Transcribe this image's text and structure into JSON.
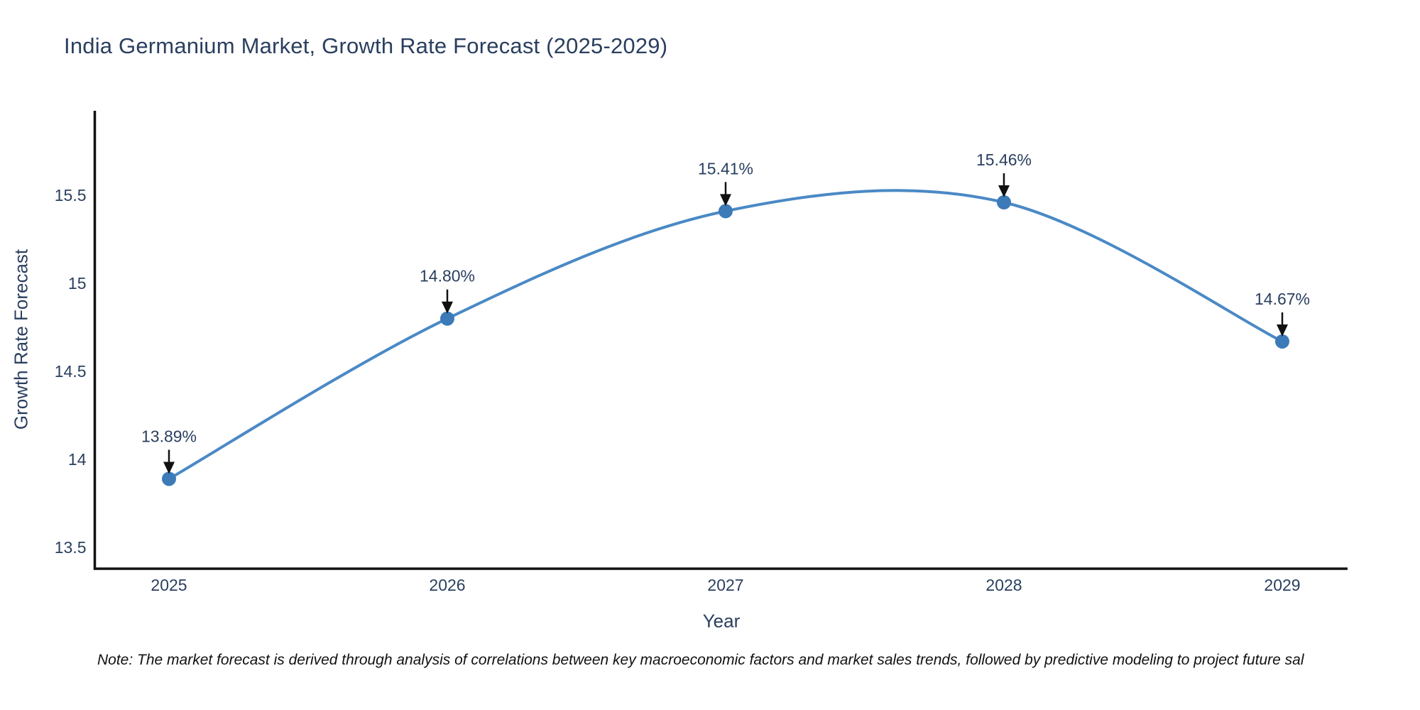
{
  "chart_data": {
    "type": "line",
    "title": "India Germanium Market, Growth Rate Forecast (2025-2029)",
    "xlabel": "Year",
    "ylabel": "Growth Rate Forecast",
    "categories": [
      "2025",
      "2026",
      "2027",
      "2028",
      "2029"
    ],
    "values": [
      13.89,
      14.8,
      15.41,
      15.46,
      14.67
    ],
    "point_labels": [
      "13.89%",
      "14.80%",
      "15.41%",
      "15.46%",
      "14.67%"
    ],
    "ytick_values": [
      13.5,
      14,
      14.5,
      15,
      15.5
    ],
    "ytick_labels": [
      "13.5",
      "14",
      "14.5",
      "15",
      "15.5"
    ],
    "ylim": [
      13.38,
      15.98
    ],
    "grid": false,
    "legend": "none",
    "line_shape": "spline",
    "colors": {
      "line": "#4a89c5",
      "marker": "#3c7ab8",
      "axis": "#111111",
      "arrow": "#111111",
      "text": "#2a3f5f"
    }
  },
  "note": {
    "text": "Note: The market forecast is derived through analysis of correlations between key macroeconomic factors and market sales trends, followed by predictive modeling to project future sal"
  }
}
